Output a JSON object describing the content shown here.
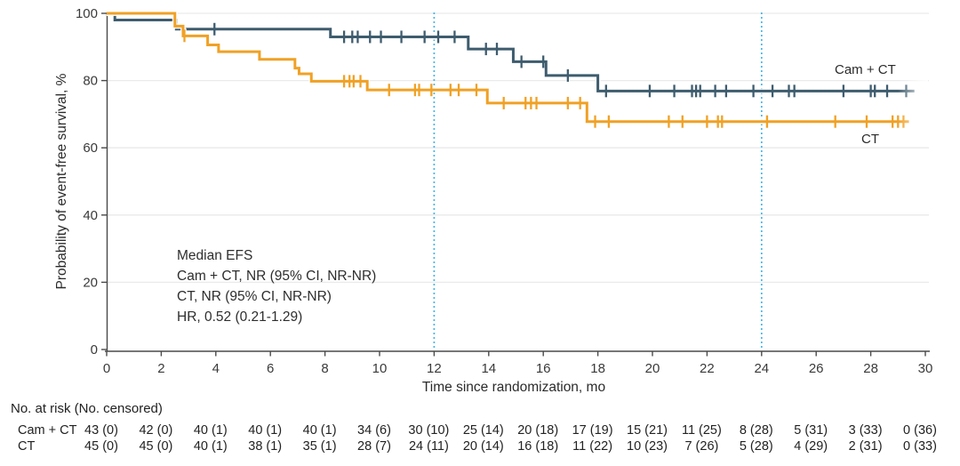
{
  "chart_data": {
    "type": "line",
    "subtype": "kaplan-meier-step",
    "title": "",
    "xlabel": "Time since randomization, mo",
    "ylabel": "Probability of event-free survival, %",
    "xlim": [
      0,
      30
    ],
    "ylim": [
      0,
      100
    ],
    "xticks": [
      0,
      2,
      4,
      6,
      8,
      10,
      12,
      14,
      16,
      18,
      20,
      22,
      24,
      26,
      28,
      30
    ],
    "yticks": [
      0,
      20,
      40,
      60,
      80,
      100
    ],
    "grid": "horizontal",
    "reference_lines_x": [
      12,
      24
    ],
    "colors": {
      "cam_ct": "#3E5C6E",
      "ct": "#F0A125",
      "reference_line": "#45B5E8",
      "gridline": "#EAEAEA",
      "axis": "#4A4A4A"
    },
    "series": [
      {
        "name": "Cam + CT",
        "color": "#3E5C6E",
        "steps": [
          [
            0,
            100
          ],
          [
            0.3,
            98.0
          ],
          [
            2.55,
            95.3
          ],
          [
            8.2,
            93.0
          ],
          [
            13.25,
            89.4
          ],
          [
            14.9,
            85.6
          ],
          [
            16.1,
            81.5
          ],
          [
            18.0,
            76.9
          ]
        ],
        "end_x": 29.6,
        "censors": [
          [
            3.95,
            95.3
          ],
          [
            8.7,
            93.0
          ],
          [
            9.0,
            93.0
          ],
          [
            9.2,
            93.0
          ],
          [
            9.65,
            93.0
          ],
          [
            10.05,
            93.0
          ],
          [
            10.8,
            93.0
          ],
          [
            11.65,
            93.0
          ],
          [
            12.15,
            93.0
          ],
          [
            12.75,
            93.0
          ],
          [
            13.9,
            89.4
          ],
          [
            14.3,
            89.4
          ],
          [
            15.2,
            85.6
          ],
          [
            16.0,
            85.6
          ],
          [
            16.9,
            81.5
          ],
          [
            18.3,
            76.9
          ],
          [
            19.9,
            76.9
          ],
          [
            20.8,
            76.9
          ],
          [
            21.45,
            76.9
          ],
          [
            21.6,
            76.9
          ],
          [
            21.75,
            76.9
          ],
          [
            22.3,
            76.9
          ],
          [
            22.7,
            76.9
          ],
          [
            23.7,
            76.9
          ],
          [
            24.4,
            76.9
          ],
          [
            25.0,
            76.9
          ],
          [
            25.2,
            76.9
          ],
          [
            27.0,
            76.9
          ],
          [
            28.0,
            76.9
          ],
          [
            28.15,
            76.9
          ],
          [
            28.6,
            76.9
          ],
          [
            29.3,
            76.9
          ]
        ]
      },
      {
        "name": "CT",
        "color": "#F0A125",
        "steps": [
          [
            0,
            100
          ],
          [
            2.5,
            96.2
          ],
          [
            2.8,
            93.3
          ],
          [
            3.7,
            90.6
          ],
          [
            4.1,
            88.6
          ],
          [
            5.6,
            86.3
          ],
          [
            6.9,
            83.7
          ],
          [
            7.05,
            82.0
          ],
          [
            7.5,
            79.8
          ],
          [
            9.55,
            77.2
          ],
          [
            13.95,
            73.3
          ],
          [
            17.6,
            67.8
          ]
        ],
        "end_x": 29.4,
        "censors": [
          [
            2.85,
            93.3
          ],
          [
            8.7,
            79.8
          ],
          [
            8.9,
            79.8
          ],
          [
            9.05,
            79.8
          ],
          [
            9.3,
            79.8
          ],
          [
            10.35,
            77.2
          ],
          [
            11.3,
            77.2
          ],
          [
            11.45,
            77.2
          ],
          [
            11.9,
            77.2
          ],
          [
            12.6,
            77.2
          ],
          [
            12.9,
            77.2
          ],
          [
            13.55,
            77.2
          ],
          [
            14.55,
            73.3
          ],
          [
            15.35,
            73.3
          ],
          [
            15.55,
            73.3
          ],
          [
            15.75,
            73.3
          ],
          [
            16.9,
            73.3
          ],
          [
            17.35,
            73.3
          ],
          [
            17.9,
            67.8
          ],
          [
            18.4,
            67.8
          ],
          [
            20.6,
            67.8
          ],
          [
            21.1,
            67.8
          ],
          [
            22.0,
            67.8
          ],
          [
            22.4,
            67.8
          ],
          [
            22.55,
            67.8
          ],
          [
            24.2,
            67.8
          ],
          [
            26.7,
            67.8
          ],
          [
            27.85,
            67.8
          ],
          [
            28.8,
            67.8
          ],
          [
            29.0,
            67.8
          ],
          [
            29.2,
            67.8
          ]
        ]
      }
    ],
    "legend": {
      "cam_ct": "Cam + CT",
      "ct": "CT"
    },
    "annotation": {
      "lines": [
        "Median EFS",
        "Cam + CT, NR (95% CI, NR-NR)",
        "CT, NR (95% CI, NR-NR)",
        "HR, 0.52 (0.21-1.29)"
      ]
    },
    "risk_table": {
      "title": "No. at risk (No. censored)",
      "rows": [
        {
          "label": "Cam + CT",
          "values": [
            "43 (0)",
            "42 (0)",
            "40 (1)",
            "40 (1)",
            "40 (1)",
            "34 (6)",
            "30 (10)",
            "25 (14)",
            "20 (18)",
            "17 (19)",
            "15 (21)",
            "11 (25)",
            "8 (28)",
            "5 (31)",
            "3 (33)",
            "0 (36)"
          ]
        },
        {
          "label": "CT",
          "values": [
            "45 (0)",
            "45 (0)",
            "40 (1)",
            "38 (1)",
            "35 (1)",
            "28 (7)",
            "24 (11)",
            "20 (14)",
            "16 (18)",
            "11 (22)",
            "10 (23)",
            "7 (26)",
            "5 (28)",
            "4 (29)",
            "2 (31)",
            "0 (33)"
          ]
        }
      ]
    }
  }
}
